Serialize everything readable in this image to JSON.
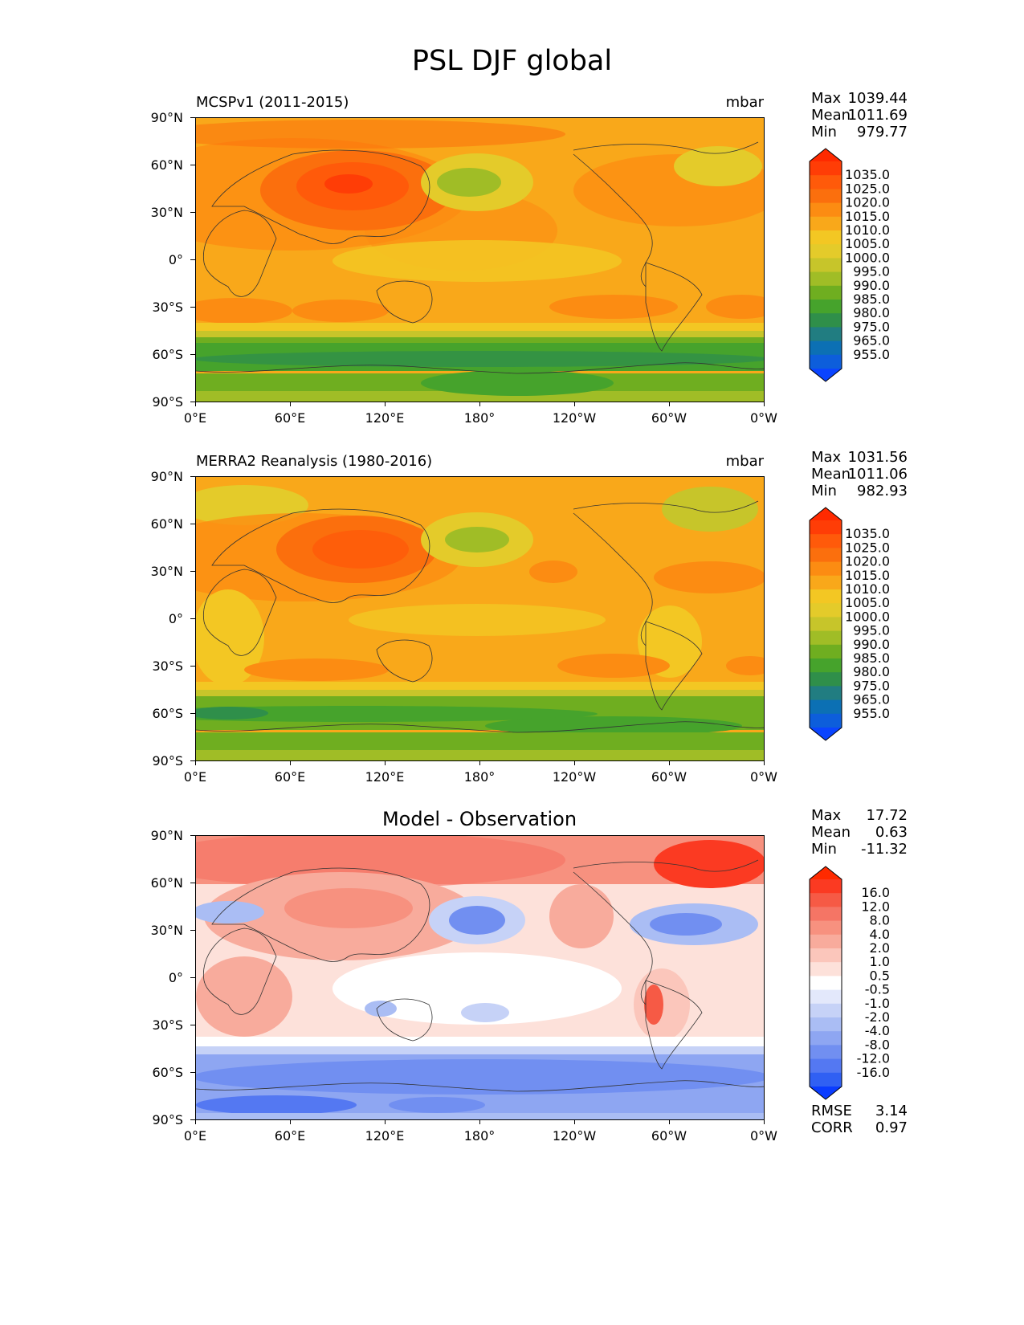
{
  "title": "PSL DJF global",
  "x_ticks": [
    "0°E",
    "60°E",
    "120°E",
    "180°",
    "120°W",
    "60°W",
    "0°W"
  ],
  "y_ticks": [
    "90°N",
    "60°N",
    "30°N",
    "0°",
    "30°S",
    "60°S",
    "90°S"
  ],
  "stat_labels": {
    "max": "Max",
    "mean": "Mean",
    "min": "Min",
    "rmse": "RMSE",
    "corr": "CORR"
  },
  "panels": [
    {
      "title": "MCSPv1 (2011-2015)",
      "units": "mbar",
      "stats": {
        "max": "1039.44",
        "mean": "1011.69",
        "min": "979.77"
      },
      "colorbar": {
        "labels": [
          "1035.0",
          "1025.0",
          "1020.0",
          "1015.0",
          "1010.0",
          "1005.0",
          "1000.0",
          "995.0",
          "990.0",
          "985.0",
          "980.0",
          "975.0",
          "965.0",
          "955.0"
        ],
        "colors": [
          "#ff3d06",
          "#ff5a0a",
          "#fb6f0d",
          "#fc8c12",
          "#f9a81a",
          "#f3c723",
          "#e4cb2a",
          "#c7c52a",
          "#a0bd26",
          "#6fae20",
          "#46a32c",
          "#2f8f4a",
          "#217d81",
          "#0c70b4",
          "#0d5edb"
        ],
        "tip_top": "#ff2a00",
        "tip_bottom": "#0a44ff"
      }
    },
    {
      "title": "MERRA2 Reanalysis (1980-2016)",
      "units": "mbar",
      "stats": {
        "max": "1031.56",
        "mean": "1011.06",
        "min": "982.93"
      },
      "colorbar": {
        "labels": [
          "1035.0",
          "1025.0",
          "1020.0",
          "1015.0",
          "1010.0",
          "1005.0",
          "1000.0",
          "995.0",
          "990.0",
          "985.0",
          "980.0",
          "975.0",
          "965.0",
          "955.0"
        ],
        "colors": [
          "#ff3d06",
          "#ff5a0a",
          "#fb6f0d",
          "#fc8c12",
          "#f9a81a",
          "#f3c723",
          "#e4cb2a",
          "#c7c52a",
          "#a0bd26",
          "#6fae20",
          "#46a32c",
          "#2f8f4a",
          "#217d81",
          "#0c70b4",
          "#0d5edb"
        ],
        "tip_top": "#ff2a00",
        "tip_bottom": "#0a44ff"
      }
    },
    {
      "title": "Model - Observation",
      "units": "",
      "stats": {
        "max": "17.72",
        "mean": "0.63",
        "min": "-11.32",
        "rmse": "3.14",
        "corr": "0.97"
      },
      "colorbar": {
        "labels": [
          "16.0",
          "12.0",
          "8.0",
          "4.0",
          "2.0",
          "1.0",
          "0.5",
          "-0.5",
          "-1.0",
          "-2.0",
          "-4.0",
          "-8.0",
          "-12.0",
          "-16.0"
        ],
        "colors": [
          "#fb3a22",
          "#f65a45",
          "#f57565",
          "#f7917f",
          "#f8ab9c",
          "#fbc6bb",
          "#fde1da",
          "#ffffff",
          "#e3e8fb",
          "#c6d2f7",
          "#aabdf4",
          "#8ea6f2",
          "#718ff1",
          "#5478f2",
          "#3060f3"
        ],
        "tip_top": "#ff2a00",
        "tip_bottom": "#0a3cff"
      }
    }
  ]
}
